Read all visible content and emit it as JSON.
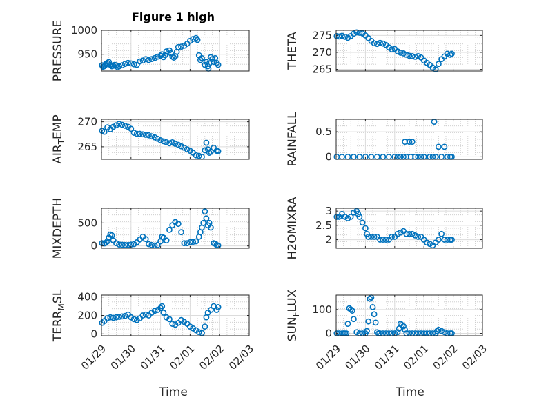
{
  "figure": {
    "title": "Figure 1 high",
    "xlabel": "Time",
    "x_tick_labels": [
      "01/29",
      "01/30",
      "01/31",
      "02/01",
      "02/02",
      "02/03"
    ]
  },
  "colors": {
    "marker": "#0072BD",
    "axis": "#262626",
    "grid": "#dcdcdc",
    "minor_grid": "#c8c8c8"
  },
  "chart_data": [
    {
      "type": "scatter",
      "id": "pressure",
      "ylabel": "PRESSURE",
      "ylabel_sub": "",
      "yticks": [
        950,
        1000
      ],
      "ylim": [
        915,
        1000
      ],
      "x": [
        0.02,
        0.05,
        0.09,
        0.12,
        0.15,
        0.2,
        0.25,
        0.3,
        0.35,
        0.4,
        0.45,
        0.5,
        0.55,
        0.6,
        0.7,
        0.8,
        0.9,
        1.0,
        1.1,
        1.2,
        1.3,
        1.4,
        1.5,
        1.6,
        1.7,
        1.8,
        1.9,
        2.0,
        2.05,
        2.1,
        2.15,
        2.2,
        2.3,
        2.35,
        2.4,
        2.45,
        2.5,
        2.55,
        2.6,
        2.7,
        2.8,
        2.9,
        3.0,
        3.1,
        3.2,
        3.25,
        3.3,
        3.35,
        3.4,
        3.5,
        3.55,
        3.6,
        3.62,
        3.65,
        3.7,
        3.75,
        3.8,
        3.85,
        3.9,
        3.95
      ],
      "values": [
        927,
        924,
        925,
        927,
        930,
        932,
        934,
        928,
        925,
        926,
        928,
        927,
        923,
        925,
        927,
        930,
        932,
        931,
        929,
        928,
        935,
        937,
        940,
        938,
        940,
        942,
        945,
        947,
        950,
        944,
        948,
        956,
        958,
        952,
        945,
        943,
        946,
        955,
        965,
        966,
        968,
        972,
        978,
        982,
        984,
        980,
        948,
        938,
        942,
        928,
        934,
        925,
        920,
        931,
        944,
        940,
        934,
        942,
        932,
        928
      ]
    },
    {
      "type": "scatter",
      "id": "theta",
      "ylabel": "THETA",
      "ylabel_sub": "",
      "yticks": [
        265,
        270,
        275
      ],
      "ylim": [
        264.5,
        276.5
      ],
      "x": [
        0.02,
        0.1,
        0.2,
        0.3,
        0.4,
        0.5,
        0.6,
        0.7,
        0.8,
        0.9,
        1.0,
        1.1,
        1.2,
        1.3,
        1.4,
        1.5,
        1.6,
        1.7,
        1.8,
        1.9,
        2.0,
        2.1,
        2.2,
        2.3,
        2.4,
        2.5,
        2.6,
        2.7,
        2.8,
        2.9,
        3.0,
        3.1,
        3.2,
        3.3,
        3.4,
        3.5,
        3.6,
        3.7,
        3.8,
        3.9,
        3.95
      ],
      "values": [
        274.8,
        274.7,
        274.9,
        274.6,
        274.3,
        274.8,
        275.5,
        275.9,
        275.8,
        275.6,
        275.0,
        274.2,
        273.4,
        272.7,
        272.5,
        272.8,
        272.6,
        272.2,
        271.5,
        270.9,
        271.0,
        270.3,
        269.9,
        269.7,
        269.3,
        269.0,
        268.9,
        268.7,
        268.9,
        268.5,
        267.6,
        266.9,
        266.3,
        265.5,
        265.0,
        266.6,
        268.0,
        268.8,
        269.6,
        269.3,
        269.6
      ]
    },
    {
      "type": "scatter",
      "id": "air_temp",
      "ylabel": "AIR",
      "ylabel_sub": "T",
      "ylabel_tail": "EMP",
      "yticks": [
        265,
        270
      ],
      "ylim": [
        262.5,
        270.5
      ],
      "x": [
        0.02,
        0.1,
        0.2,
        0.3,
        0.4,
        0.5,
        0.6,
        0.7,
        0.8,
        0.9,
        1.0,
        1.1,
        1.2,
        1.3,
        1.4,
        1.5,
        1.6,
        1.7,
        1.8,
        1.9,
        2.0,
        2.1,
        2.2,
        2.3,
        2.4,
        2.5,
        2.6,
        2.7,
        2.8,
        2.9,
        3.0,
        3.1,
        3.2,
        3.3,
        3.4,
        3.5,
        3.55,
        3.6,
        3.65,
        3.7,
        3.8,
        3.9,
        3.95
      ],
      "values": [
        268.2,
        268.0,
        268.9,
        268.5,
        269.0,
        269.3,
        269.6,
        269.4,
        269.2,
        269.0,
        268.6,
        267.8,
        267.6,
        267.6,
        267.5,
        267.4,
        267.3,
        267.1,
        266.9,
        266.6,
        266.3,
        266.1,
        265.9,
        265.7,
        265.9,
        265.6,
        265.4,
        265.1,
        264.8,
        264.5,
        264.2,
        263.8,
        263.3,
        263.2,
        263.0,
        264.3,
        265.8,
        264.5,
        263.8,
        264.0,
        264.8,
        264.2,
        264.1
      ]
    },
    {
      "type": "scatter",
      "id": "rainfall",
      "ylabel": "RAINFALL",
      "ylabel_sub": "",
      "yticks": [
        0,
        0.5
      ],
      "ylim": [
        -0.05,
        0.75
      ],
      "x": [
        0.02,
        0.2,
        0.4,
        0.6,
        0.8,
        1.0,
        1.2,
        1.4,
        1.6,
        1.8,
        2.0,
        2.1,
        2.2,
        2.3,
        2.35,
        2.4,
        2.5,
        2.55,
        2.6,
        2.7,
        2.8,
        2.9,
        3.0,
        3.2,
        3.3,
        3.35,
        3.4,
        3.5,
        3.6,
        3.7,
        3.8,
        3.9,
        3.95
      ],
      "values": [
        0,
        0,
        0,
        0,
        0,
        0,
        0,
        0,
        0,
        0,
        0,
        0,
        0,
        0,
        0.3,
        0,
        0.3,
        0,
        0.3,
        0,
        0,
        0,
        0,
        0,
        0,
        0.7,
        0,
        0.2,
        0,
        0.2,
        0,
        0,
        0
      ]
    },
    {
      "type": "scatter",
      "id": "mixdepth",
      "ylabel": "MIXDEPTH",
      "ylabel_sub": "",
      "yticks": [
        0,
        500
      ],
      "ylim": [
        -50,
        820
      ],
      "x": [
        0.02,
        0.1,
        0.15,
        0.2,
        0.25,
        0.3,
        0.35,
        0.4,
        0.5,
        0.6,
        0.7,
        0.8,
        0.9,
        1.0,
        1.1,
        1.2,
        1.3,
        1.4,
        1.5,
        1.6,
        1.7,
        1.8,
        1.9,
        2.0,
        2.05,
        2.1,
        2.2,
        2.3,
        2.4,
        2.5,
        2.6,
        2.7,
        2.8,
        2.9,
        3.0,
        3.1,
        3.2,
        3.3,
        3.35,
        3.4,
        3.45,
        3.5,
        3.55,
        3.6,
        3.65,
        3.7,
        3.8,
        3.85,
        3.9,
        3.95
      ],
      "values": [
        60,
        55,
        70,
        100,
        180,
        250,
        230,
        120,
        60,
        30,
        25,
        20,
        20,
        30,
        40,
        80,
        140,
        200,
        150,
        40,
        20,
        10,
        20,
        100,
        200,
        180,
        120,
        350,
        450,
        520,
        480,
        300,
        60,
        60,
        80,
        90,
        100,
        200,
        300,
        400,
        500,
        750,
        600,
        450,
        500,
        400,
        60,
        50,
        20,
        10
      ]
    },
    {
      "type": "scatter",
      "id": "h2omixra",
      "ylabel": "H2OMIXRA",
      "ylabel_sub": "",
      "yticks": [
        2,
        2.5,
        3
      ],
      "ylim": [
        1.7,
        3.1
      ],
      "x": [
        0.02,
        0.1,
        0.2,
        0.3,
        0.4,
        0.5,
        0.6,
        0.7,
        0.75,
        0.8,
        0.9,
        1.0,
        1.05,
        1.1,
        1.2,
        1.3,
        1.4,
        1.5,
        1.6,
        1.7,
        1.8,
        1.9,
        2.0,
        2.1,
        2.2,
        2.3,
        2.4,
        2.5,
        2.6,
        2.7,
        2.8,
        2.9,
        3.0,
        3.1,
        3.2,
        3.3,
        3.4,
        3.5,
        3.6,
        3.7,
        3.8,
        3.9,
        3.95
      ],
      "values": [
        2.8,
        2.8,
        2.9,
        2.8,
        2.75,
        2.8,
        2.95,
        3.0,
        2.9,
        2.8,
        2.6,
        2.4,
        2.2,
        2.1,
        2.1,
        2.1,
        2.1,
        2.0,
        2.0,
        2.0,
        2.0,
        2.1,
        2.1,
        2.2,
        2.25,
        2.3,
        2.2,
        2.2,
        2.2,
        2.15,
        2.1,
        2.1,
        2.0,
        1.9,
        1.85,
        1.8,
        1.9,
        2.0,
        2.2,
        2.0,
        2.0,
        2.0,
        2.0
      ]
    },
    {
      "type": "scatter",
      "id": "terr_msl",
      "ylabel": "TERR",
      "ylabel_sub": "M",
      "ylabel_tail": "SL",
      "yticks": [
        0,
        200,
        400
      ],
      "ylim": [
        -20,
        420
      ],
      "x": [
        0.02,
        0.1,
        0.2,
        0.3,
        0.4,
        0.5,
        0.6,
        0.7,
        0.8,
        0.9,
        1.0,
        1.1,
        1.2,
        1.3,
        1.4,
        1.5,
        1.6,
        1.7,
        1.8,
        1.9,
        2.0,
        2.05,
        2.1,
        2.2,
        2.3,
        2.4,
        2.5,
        2.6,
        2.7,
        2.8,
        2.9,
        3.0,
        3.1,
        3.2,
        3.3,
        3.4,
        3.5,
        3.55,
        3.6,
        3.7,
        3.8,
        3.9,
        3.95
      ],
      "values": [
        120,
        140,
        170,
        180,
        175,
        180,
        185,
        190,
        195,
        210,
        180,
        160,
        150,
        170,
        200,
        210,
        200,
        230,
        250,
        260,
        280,
        300,
        230,
        180,
        160,
        110,
        100,
        120,
        150,
        130,
        110,
        80,
        60,
        40,
        20,
        10,
        80,
        180,
        230,
        260,
        300,
        260,
        290
      ]
    },
    {
      "type": "scatter",
      "id": "sun_flux",
      "ylabel": "SUN",
      "ylabel_sub": "F",
      "ylabel_tail": "LUX",
      "yticks": [
        0,
        100
      ],
      "ylim": [
        -10,
        160
      ],
      "x": [
        0.02,
        0.1,
        0.2,
        0.25,
        0.3,
        0.35,
        0.4,
        0.45,
        0.5,
        0.55,
        0.6,
        0.7,
        0.8,
        0.9,
        1.0,
        1.05,
        1.1,
        1.15,
        1.2,
        1.25,
        1.3,
        1.35,
        1.4,
        1.45,
        1.5,
        1.6,
        1.7,
        1.8,
        1.9,
        2.0,
        2.1,
        2.15,
        2.2,
        2.25,
        2.3,
        2.35,
        2.4,
        2.5,
        2.6,
        2.7,
        2.8,
        2.9,
        3.0,
        3.1,
        3.2,
        3.3,
        3.4,
        3.45,
        3.5,
        3.6,
        3.7,
        3.8,
        3.9,
        3.95
      ],
      "values": [
        0,
        0,
        0,
        0,
        0,
        0,
        40,
        105,
        100,
        95,
        60,
        5,
        0,
        0,
        0,
        10,
        50,
        145,
        150,
        110,
        80,
        45,
        5,
        0,
        0,
        0,
        0,
        0,
        0,
        0,
        5,
        20,
        40,
        35,
        30,
        15,
        0,
        0,
        0,
        0,
        0,
        0,
        0,
        0,
        0,
        0,
        0,
        10,
        15,
        10,
        5,
        0,
        0,
        0
      ]
    }
  ]
}
